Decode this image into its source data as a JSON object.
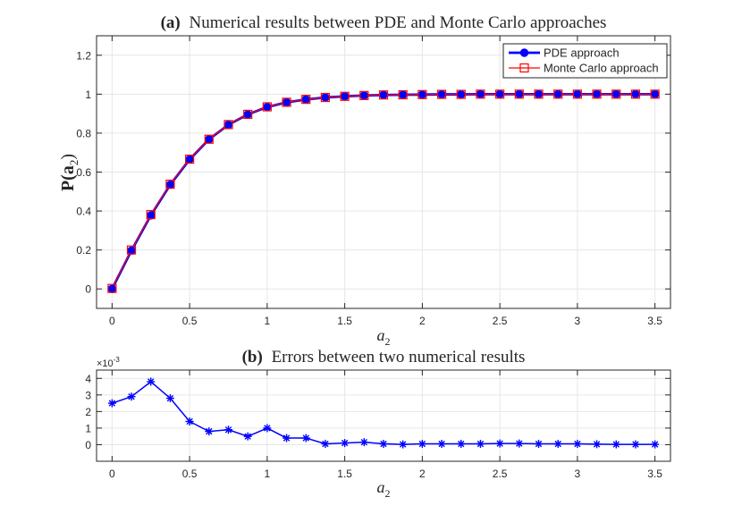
{
  "chart_data": [
    {
      "panel": "a",
      "type": "line",
      "title_tag": "(a)",
      "title": "Numerical results between PDE and Monte Carlo approaches",
      "xlabel_base": "a",
      "xlabel_sub": "2",
      "ylabel_base": "P(a",
      "ylabel_sub": "2",
      "ylabel_end": ")",
      "xlim": [
        -0.1,
        3.6
      ],
      "ylim": [
        -0.1,
        1.3
      ],
      "xticks": [
        0,
        0.5,
        1,
        1.5,
        2,
        2.5,
        3,
        3.5
      ],
      "xtick_labels": [
        "0",
        "0.5",
        "1",
        "1.5",
        "2",
        "2.5",
        "3",
        "3.5"
      ],
      "yticks": [
        0,
        0.2,
        0.4,
        0.6,
        0.8,
        1,
        1.2
      ],
      "ytick_labels": [
        "0",
        "0.2",
        "0.4",
        "0.6",
        "0.8",
        "1",
        "1.2"
      ],
      "grid": true,
      "legend_location": "top-right",
      "x": [
        0,
        0.125,
        0.25,
        0.375,
        0.5,
        0.625,
        0.75,
        0.875,
        1,
        1.125,
        1.25,
        1.375,
        1.5,
        1.625,
        1.75,
        1.875,
        2,
        2.125,
        2.25,
        2.375,
        2.5,
        2.625,
        2.75,
        2.875,
        3,
        3.125,
        3.25,
        3.375,
        3.5
      ],
      "series": [
        {
          "name": "PDE approach",
          "color": "#0000ff",
          "marker": "circle",
          "values": [
            0,
            0.197,
            0.378,
            0.535,
            0.665,
            0.768,
            0.843,
            0.896,
            0.934,
            0.958,
            0.973,
            0.983,
            0.989,
            0.993,
            0.996,
            0.997,
            0.998,
            0.999,
            0.999,
            1,
            1,
            1,
            1,
            1,
            1,
            1,
            1,
            1,
            1
          ]
        },
        {
          "name": "Monte Carlo approach",
          "color": "#ff0000",
          "marker": "square",
          "values": [
            0.0025,
            0.1999,
            0.3818,
            0.5378,
            0.6664,
            0.7688,
            0.8439,
            0.8965,
            0.935,
            0.9584,
            0.9734,
            0.983,
            0.989,
            0.9931,
            0.9961,
            0.997,
            0.998,
            0.9991,
            0.999,
            1.0001,
            1.0001,
            1.0001,
            1.0001,
            1.0001,
            1.0001,
            1.0001,
            1.0,
            1.0,
            1.0
          ]
        }
      ]
    },
    {
      "panel": "b",
      "type": "line",
      "title_tag": "(b)",
      "title": "Errors between two numerical results",
      "xlabel_base": "a",
      "xlabel_sub": "2",
      "y_scale_base": "×10",
      "y_scale_exp": "-3",
      "xlim": [
        -0.1,
        3.6
      ],
      "ylim": [
        -1,
        4.5
      ],
      "xticks": [
        0,
        0.5,
        1,
        1.5,
        2,
        2.5,
        3,
        3.5
      ],
      "xtick_labels": [
        "0",
        "0.5",
        "1",
        "1.5",
        "2",
        "2.5",
        "3",
        "3.5"
      ],
      "yticks": [
        0,
        1,
        2,
        3,
        4
      ],
      "ytick_labels": [
        "0",
        "1",
        "2",
        "3",
        "4"
      ],
      "grid": true,
      "x": [
        0,
        0.125,
        0.25,
        0.375,
        0.5,
        0.625,
        0.75,
        0.875,
        1,
        1.125,
        1.25,
        1.375,
        1.5,
        1.625,
        1.75,
        1.875,
        2,
        2.125,
        2.25,
        2.375,
        2.5,
        2.625,
        2.75,
        2.875,
        3,
        3.125,
        3.25,
        3.375,
        3.5
      ],
      "series": [
        {
          "name": "Error",
          "color": "#0000ff",
          "marker": "asterisk",
          "values": [
            2.5,
            2.9,
            3.8,
            2.8,
            1.4,
            0.8,
            0.9,
            0.5,
            1.0,
            0.4,
            0.4,
            0.05,
            0.1,
            0.15,
            0.05,
            0.02,
            0.05,
            0.05,
            0.05,
            0.05,
            0.07,
            0.07,
            0.05,
            0.05,
            0.05,
            0.03,
            0.02,
            0.02,
            0.02
          ]
        }
      ]
    }
  ]
}
